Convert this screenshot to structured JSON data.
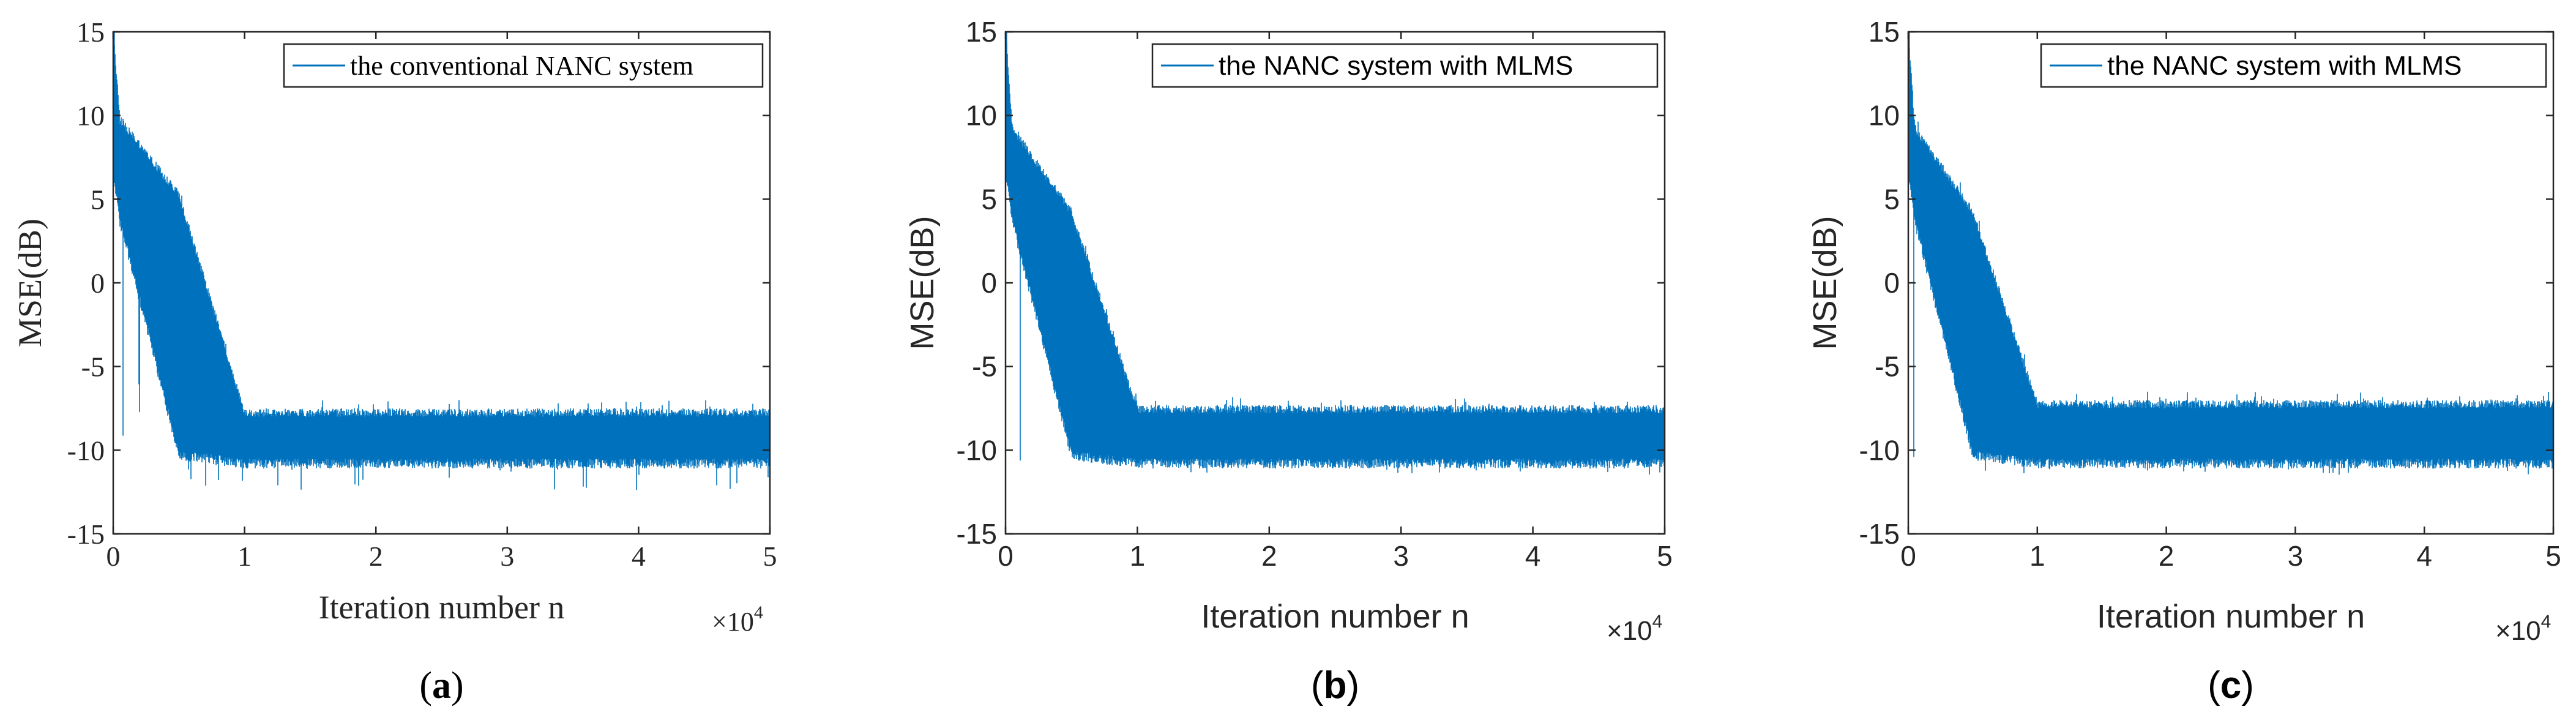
{
  "colors": {
    "line": "#0072bd",
    "axis": "#262626"
  },
  "chart_data": [
    {
      "type": "line",
      "caption": "a",
      "legend": "the conventional NANC system",
      "xlabel": "Iteration number n",
      "ylabel": "MSE(dB)",
      "xlim": [
        0,
        5
      ],
      "ylim": [
        -15,
        15
      ],
      "x_ticks": [
        "0",
        "1",
        "2",
        "3",
        "4",
        "5"
      ],
      "y_ticks": [
        "15",
        "10",
        "5",
        "0",
        "-5",
        "-10",
        "-15"
      ],
      "x_multiplier_base": "×10",
      "x_multiplier_exp": "4",
      "series": [
        {
          "name": "the conventional NANC system",
          "x": [
            0,
            0.05,
            0.5,
            1,
            2,
            3,
            4,
            5
          ],
          "y_upper": [
            15,
            9.5,
            5,
            -8,
            -8,
            -8,
            -8,
            -8
          ],
          "y_lower": [
            7,
            4,
            -10,
            -10.5,
            -10.5,
            -10.5,
            -10.5,
            -10.5
          ],
          "convergence_x": 0.75,
          "steady_state_mean": -9.3,
          "min_spike": -12.5
        }
      ]
    },
    {
      "type": "line",
      "caption": "b",
      "legend": "the NANC system with MLMS",
      "xlabel": "Iteration number n",
      "ylabel": "MSE(dB)",
      "xlim": [
        0,
        5
      ],
      "ylim": [
        -15,
        15
      ],
      "x_ticks": [
        "0",
        "1",
        "2",
        "3",
        "4",
        "5"
      ],
      "y_ticks": [
        "15",
        "10",
        "5",
        "0",
        "-5",
        "-10",
        "-15"
      ],
      "x_multiplier_base": "×10",
      "x_multiplier_exp": "4",
      "series": [
        {
          "name": "the NANC system with MLMS",
          "x": [
            0,
            0.05,
            0.5,
            1,
            2,
            3,
            4,
            5
          ],
          "y_upper": [
            15,
            9,
            4,
            -7.8,
            -7.8,
            -7.8,
            -7.8,
            -7.8
          ],
          "y_lower": [
            7,
            4,
            -10,
            -10.5,
            -10.5,
            -10.5,
            -10.5,
            -10.5
          ],
          "convergence_x": 0.75,
          "steady_state_mean": -9.2,
          "min_spike": -11.5
        }
      ]
    },
    {
      "type": "line",
      "caption": "c",
      "legend": "the NANC system with MLMS",
      "xlabel": "Iteration number n",
      "ylabel": "MSE(dB)",
      "xlim": [
        0,
        5
      ],
      "ylim": [
        -15,
        15
      ],
      "x_ticks": [
        "0",
        "1",
        "2",
        "3",
        "4",
        "5"
      ],
      "y_ticks": [
        "15",
        "10",
        "5",
        "0",
        "-5",
        "-10",
        "-15"
      ],
      "x_multiplier_base": "×10",
      "x_multiplier_exp": "4",
      "series": [
        {
          "name": "the NANC system with MLMS",
          "x": [
            0,
            0.05,
            0.5,
            1,
            2,
            3,
            4,
            5
          ],
          "y_upper": [
            15,
            9,
            4,
            -7.5,
            -7.5,
            -7.5,
            -7.5,
            -7.5
          ],
          "y_lower": [
            7,
            4,
            -10,
            -10.5,
            -10.5,
            -10.5,
            -10.5,
            -10.5
          ],
          "convergence_x": 0.8,
          "steady_state_mean": -9.2,
          "min_spike": -11.5
        }
      ]
    }
  ]
}
